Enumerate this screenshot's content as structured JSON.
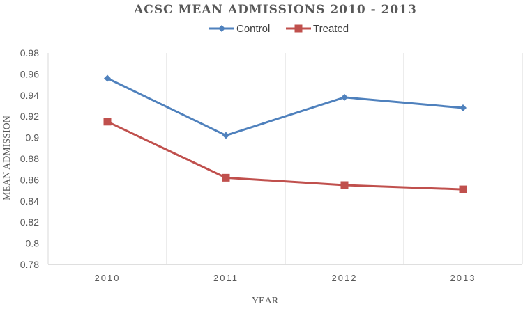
{
  "chart_data": {
    "type": "line",
    "title": "ACSC MEAN ADMISSIONS 2010 - 2013",
    "xlabel": "YEAR",
    "ylabel": "MEAN ADMISSION",
    "categories": [
      "2010",
      "2011",
      "2012",
      "2013"
    ],
    "ylim": [
      0.78,
      0.98
    ],
    "yticks": [
      "0.78",
      "0.8",
      "0.82",
      "0.84",
      "0.86",
      "0.88",
      "0.9",
      "0.92",
      "0.94",
      "0.96",
      "0.98"
    ],
    "grid": "vertical category separators",
    "legend": "top",
    "series": [
      {
        "name": "Control",
        "values": [
          0.956,
          0.902,
          0.938,
          0.928
        ],
        "color": "#4F81BD",
        "marker": "diamond"
      },
      {
        "name": "Treated",
        "values": [
          0.915,
          0.862,
          0.855,
          0.851
        ],
        "color": "#C0504D",
        "marker": "square"
      }
    ]
  }
}
